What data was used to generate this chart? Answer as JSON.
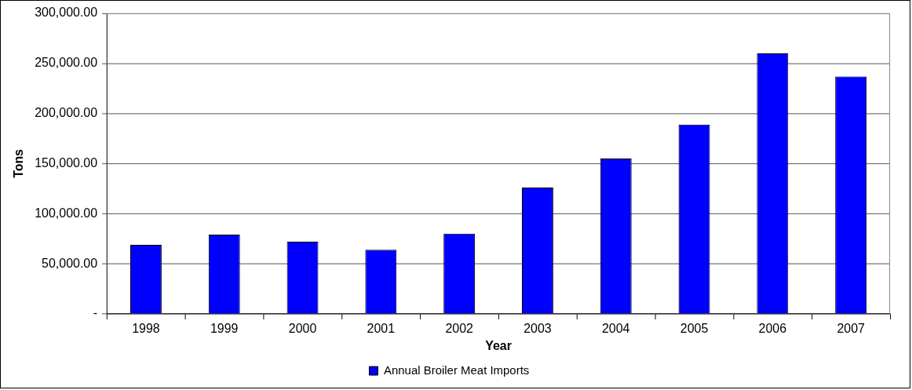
{
  "chart_data": {
    "type": "bar",
    "xlabel": "Year",
    "ylabel": "Tons",
    "categories": [
      "1998",
      "1999",
      "2000",
      "2001",
      "2002",
      "2003",
      "2004",
      "2005",
      "2006",
      "2007"
    ],
    "series": [
      {
        "name": "Annual Broiler Meat Imports",
        "color": "#0000ff",
        "values": [
          69000,
          79000,
          72000,
          64000,
          80000,
          126000,
          155000,
          189000,
          260000,
          237000
        ]
      }
    ],
    "ylim": [
      0,
      300000
    ],
    "yticks": [
      {
        "value": 0,
        "label": "-"
      },
      {
        "value": 50000,
        "label": "50,000.00"
      },
      {
        "value": 100000,
        "label": "100,000.00"
      },
      {
        "value": 150000,
        "label": "150,000.00"
      },
      {
        "value": 200000,
        "label": "200,000.00"
      },
      {
        "value": 250000,
        "label": "250,000.00"
      },
      {
        "value": 300000,
        "label": "300,000.00"
      }
    ],
    "grid": "y",
    "legend": "bottom"
  }
}
